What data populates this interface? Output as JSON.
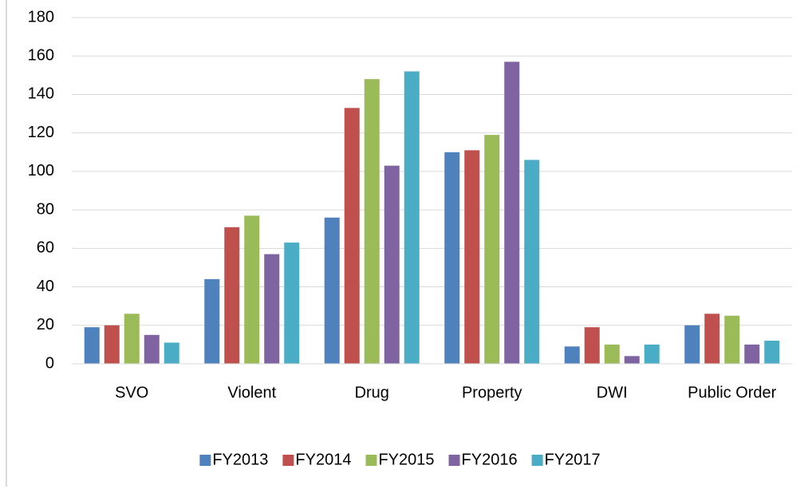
{
  "chart_data": {
    "type": "bar",
    "categories": [
      "SVO",
      "Violent",
      "Drug",
      "Property",
      "DWI",
      "Public Order"
    ],
    "series": [
      {
        "name": "FY2013",
        "color": "#4f81bd",
        "values": [
          19,
          44,
          76,
          110,
          9,
          20
        ]
      },
      {
        "name": "FY2014",
        "color": "#c0504d",
        "values": [
          20,
          71,
          133,
          111,
          19,
          26
        ]
      },
      {
        "name": "FY2015",
        "color": "#9bbb59",
        "values": [
          26,
          77,
          148,
          119,
          10,
          25
        ]
      },
      {
        "name": "FY2016",
        "color": "#8064a2",
        "values": [
          15,
          57,
          103,
          157,
          4,
          10
        ]
      },
      {
        "name": "FY2017",
        "color": "#4bacc6",
        "values": [
          11,
          63,
          152,
          106,
          10,
          12
        ]
      }
    ],
    "ylim": [
      0,
      180
    ],
    "yticks": [
      0,
      20,
      40,
      60,
      80,
      100,
      120,
      140,
      160,
      180
    ],
    "grid": true,
    "legend": "bottom"
  }
}
